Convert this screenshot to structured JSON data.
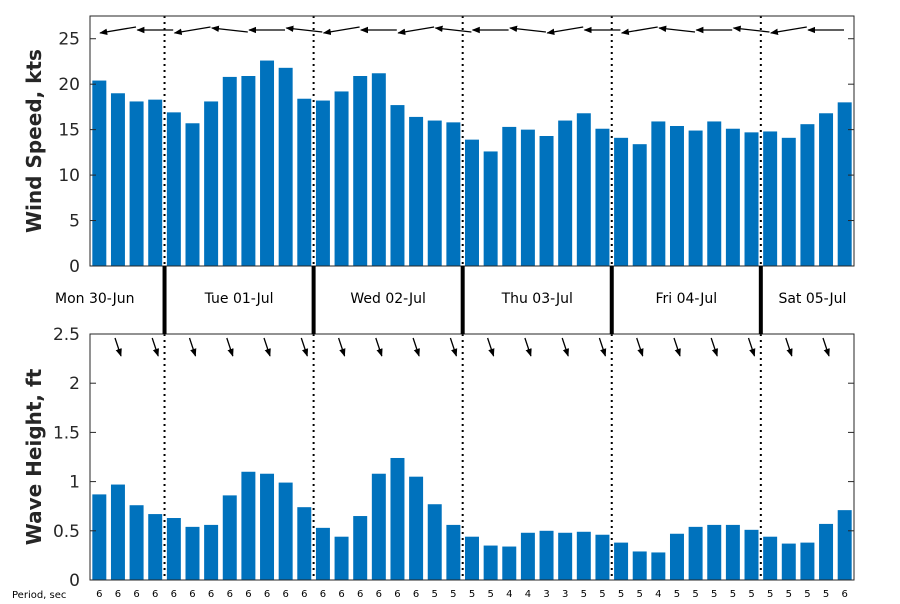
{
  "chart_data": [
    {
      "type": "bar",
      "ylabel": "Wind Speed, kts",
      "ylim": [
        0,
        27.5
      ],
      "yticks": [
        "0",
        "5",
        "10",
        "15",
        "20",
        "25"
      ],
      "bar_color": "#0072bd",
      "values": [
        20.4,
        19.0,
        18.1,
        18.3,
        16.9,
        15.7,
        18.1,
        20.8,
        20.9,
        22.6,
        21.8,
        18.4,
        18.2,
        19.2,
        20.9,
        21.2,
        17.7,
        16.4,
        16.0,
        15.8,
        13.9,
        12.6,
        15.3,
        15.0,
        14.3,
        16.0,
        16.8,
        15.1,
        14.1,
        13.4,
        15.9,
        15.4,
        14.9,
        15.9,
        15.1,
        14.7,
        14.8,
        14.1,
        15.6,
        16.8,
        18.0
      ],
      "direction_markers": "wind arrows pointing toward the west (leftward)"
    },
    {
      "type": "bar",
      "ylabel": "Wave Height, ft",
      "ylim": [
        0,
        2.5
      ],
      "yticks": [
        "0",
        "0.5",
        "1",
        "1.5",
        "2",
        "2.5"
      ],
      "bar_color": "#0072bd",
      "values": [
        0.87,
        0.97,
        0.76,
        0.67,
        0.63,
        0.54,
        0.56,
        0.86,
        1.1,
        1.08,
        0.99,
        0.74,
        0.53,
        0.44,
        0.65,
        1.08,
        1.24,
        1.05,
        0.77,
        0.56,
        0.44,
        0.35,
        0.34,
        0.48,
        0.5,
        0.48,
        0.49,
        0.46,
        0.38,
        0.29,
        0.28,
        0.47,
        0.54,
        0.56,
        0.56,
        0.51,
        0.44,
        0.37,
        0.38,
        0.57,
        0.71
      ],
      "direction_markers": "wave arrows pointing south-southeast (downward)",
      "period_label": "Period, sec",
      "periods": [
        "6",
        "6",
        "6",
        "6",
        "6",
        "6",
        "6",
        "6",
        "6",
        "6",
        "6",
        "6",
        "6",
        "6",
        "6",
        "6",
        "6",
        "6",
        "5",
        "5",
        "5",
        "5",
        "4",
        "4",
        "3",
        "3",
        "5",
        "5",
        "5",
        "5",
        "4",
        "5",
        "5",
        "5",
        "5",
        "5",
        "5",
        "5",
        "5",
        "5",
        "6"
      ]
    }
  ],
  "days": [
    "Mon 30-Jun",
    "Tue 01-Jul",
    "Wed 02-Jul",
    "Thu 03-Jul",
    "Fri 04-Jul",
    "Sat 05-Jul"
  ],
  "day_boundaries": [
    3.5,
    11.5,
    19.5,
    27.5,
    35.5
  ],
  "colors": {
    "bar": "#0072bd",
    "axis": "#262626",
    "arrow": "#000000"
  }
}
